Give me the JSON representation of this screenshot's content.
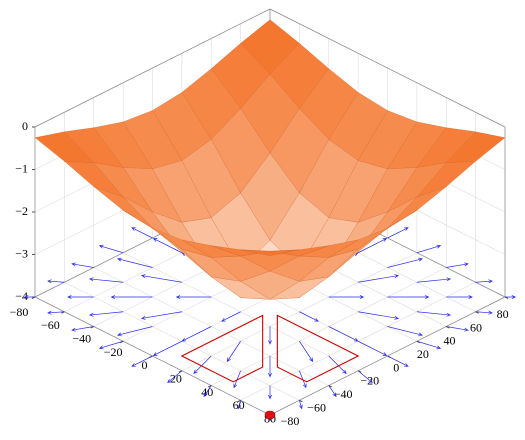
{
  "chart_data": {
    "type": "surface",
    "x": [
      -80,
      -60,
      -40,
      -20,
      0,
      20,
      40,
      60,
      80
    ],
    "y": [
      -80,
      -60,
      -40,
      -20,
      0,
      20,
      40,
      60,
      80
    ],
    "z": [
      [
        -0.25,
        -0.46,
        -0.71,
        -0.92,
        -1,
        -0.92,
        -0.71,
        -0.46,
        -0.25
      ],
      [
        -0.46,
        -0.84,
        -1.3,
        -1.68,
        -1.83,
        -1.68,
        -1.3,
        -0.84,
        -0.46
      ],
      [
        -0.71,
        -1.3,
        -2,
        -2.59,
        -2.83,
        -2.59,
        -2,
        -1.3,
        -0.71
      ],
      [
        -0.92,
        -1.68,
        -2.59,
        -3.36,
        -3.67,
        -3.36,
        -2.59,
        -1.68,
        -0.92
      ],
      [
        -1,
        -1.83,
        -2.83,
        -3.67,
        -4,
        -3.67,
        -2.83,
        -1.83,
        -1
      ],
      [
        -0.92,
        -1.68,
        -2.59,
        -3.36,
        -3.67,
        -3.36,
        -2.59,
        -1.68,
        -0.92
      ],
      [
        -0.71,
        -1.3,
        -2,
        -2.59,
        -2.83,
        -2.59,
        -2,
        -1.3,
        -0.71
      ],
      [
        -0.46,
        -0.84,
        -1.3,
        -1.68,
        -1.83,
        -1.68,
        -1.3,
        -0.84,
        -0.46
      ],
      [
        -0.25,
        -0.46,
        -0.71,
        -0.92,
        -1,
        -0.92,
        -0.71,
        -0.46,
        -0.25
      ]
    ],
    "colormap": [
      "#ffffff",
      "#f36d1f"
    ],
    "mesh_color": "#c8561a",
    "quiver": {
      "color": "#2b2bf0",
      "u": [
        [
          -3.5,
          -4.8,
          -4.9,
          -3.2,
          0,
          3.2,
          4.9,
          4.8,
          3.5
        ],
        [
          -6.4,
          -8.8,
          -9.1,
          -5.9,
          0,
          5.9,
          9.1,
          8.8,
          6.4
        ],
        [
          -9.9,
          -13.6,
          -14,
          -9.1,
          0,
          9.1,
          14,
          13.6,
          9.9
        ],
        [
          -12.8,
          -17.7,
          -18.2,
          -11.8,
          0,
          11.8,
          18.2,
          17.7,
          12.8
        ],
        [
          -14,
          -19.3,
          -19.8,
          -12.8,
          0,
          12.8,
          19.8,
          19.3,
          14
        ],
        [
          -12.8,
          -17.7,
          -18.2,
          -11.8,
          0,
          11.8,
          18.2,
          17.7,
          12.8
        ],
        [
          -9.9,
          -13.6,
          -14,
          -9.1,
          0,
          9.1,
          14,
          13.6,
          9.9
        ],
        [
          -6.4,
          -8.8,
          -9.1,
          -5.9,
          0,
          5.9,
          9.1,
          8.8,
          6.4
        ],
        [
          -3.5,
          -4.8,
          -4.9,
          -3.2,
          0,
          3.2,
          4.9,
          4.8,
          3.5
        ]
      ],
      "v": [
        [
          -3.5,
          -6.4,
          -9.9,
          -12.8,
          -14,
          -12.8,
          -9.9,
          -6.4,
          -3.5
        ],
        [
          -4.8,
          -8.8,
          -13.6,
          -17.7,
          -19.3,
          -17.7,
          -13.6,
          -8.8,
          -4.8
        ],
        [
          -4.9,
          -9.1,
          -14,
          -18.2,
          -19.8,
          -18.2,
          -14,
          -9.1,
          -4.9
        ],
        [
          -3.2,
          -5.9,
          -9.1,
          -11.8,
          -12.8,
          -11.8,
          -9.1,
          -5.9,
          -3.2
        ],
        [
          0,
          0,
          0,
          0,
          0,
          0,
          0,
          0,
          0
        ],
        [
          3.2,
          5.9,
          9.1,
          11.8,
          12.8,
          11.8,
          9.1,
          5.9,
          3.2
        ],
        [
          4.9,
          9.1,
          14,
          18.2,
          19.8,
          18.2,
          14,
          9.1,
          4.9
        ],
        [
          4.8,
          8.8,
          13.6,
          17.7,
          19.3,
          17.7,
          13.6,
          8.8,
          4.8
        ],
        [
          3.5,
          6.4,
          9.9,
          12.8,
          14,
          12.8,
          9.9,
          6.4,
          3.5
        ]
      ]
    },
    "regions": {
      "color": "#cc0000",
      "shapes": [
        {
          "x": [
            10,
            10,
            45,
            45
          ],
          "y": [
            -70,
            -15,
            -50,
            -70
          ]
        },
        {
          "x": [
            70,
            15,
            50,
            70
          ],
          "y": [
            -10,
            -10,
            -45,
            -45
          ]
        }
      ]
    },
    "point": {
      "x": 80,
      "y": -80,
      "color": "#dd1111"
    },
    "xlim": [
      -80,
      80
    ],
    "ylim": [
      -80,
      80
    ],
    "zlim": [
      -4,
      0
    ],
    "xticks": [
      {
        "value": -80,
        "label": "−80"
      },
      {
        "value": -60,
        "label": "−60"
      },
      {
        "value": -40,
        "label": "−40"
      },
      {
        "value": -20,
        "label": "−20"
      },
      0,
      20,
      40,
      60,
      80
    ],
    "yticks": [
      {
        "value": -80,
        "label": "−80"
      },
      {
        "value": -60,
        "label": "−60"
      },
      {
        "value": -40,
        "label": "−40"
      },
      {
        "value": -20,
        "label": "−20"
      },
      0,
      20,
      40,
      60,
      80
    ],
    "zticks": [
      {
        "value": -4,
        "label": "−4"
      },
      {
        "value": -3,
        "label": "−3"
      },
      {
        "value": -2,
        "label": "−2"
      },
      {
        "value": -1,
        "label": "−1"
      },
      0
    ],
    "grid": true
  }
}
